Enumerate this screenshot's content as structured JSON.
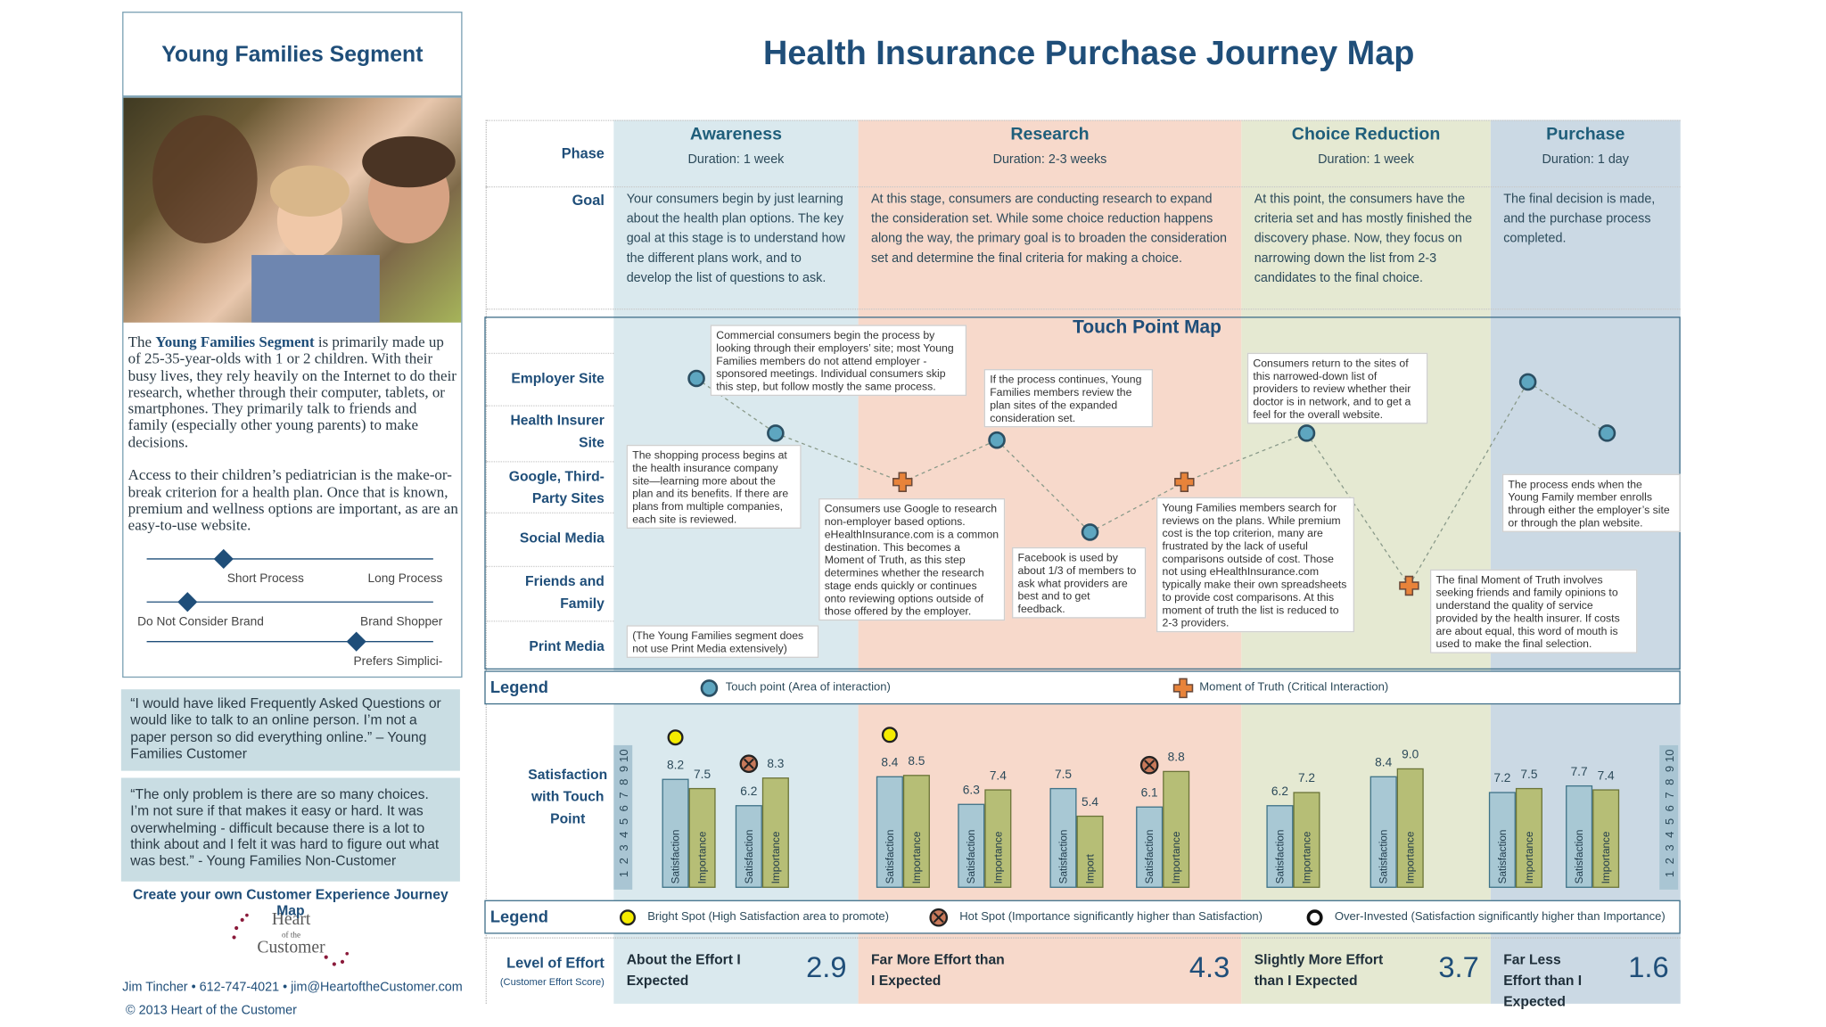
{
  "segment": {
    "title": "Young Families Segment",
    "intro_prefix": "The ",
    "intro_bold": "Young Families Segment",
    "intro_rest": " is primarily made up of 25-35-year-olds with 1 or 2 children. With their busy lives, they rely heavily on the Internet to do their research, whether through their computer, tablets, or smartphones.  They primarily talk to friends and family (especially other young parents) to make decisions.",
    "access_text": "Access to their children’s pediatrician is the make-or-break criterion for a health plan.  Once that is known, premium and wellness options are important, as are an easy-to-use website.",
    "sliders": [
      {
        "left": "Short Process",
        "right": "Long Process"
      },
      {
        "left": "Do Not Consider Brand",
        "right": "Brand Shopper"
      },
      {
        "right": "Prefers Simplici-"
      }
    ],
    "quotes": [
      "“I would have liked Frequently Asked Questions or would like to talk to an online person.  I’m not a paper person so did everything online.” – Young Families Customer",
      "“The only problem is there are so many choices. I’m not sure if that makes it easy or hard. It was overwhelming - difficult because there is a lot to think about and I felt it was hard to figure out what was best.” - Young Families Non-Customer"
    ],
    "cta": "Create your own Customer Experience Journey Map",
    "logo": {
      "line1": "Heart",
      "line2": "of the",
      "line3": "Customer"
    },
    "contact": "Jim Tincher • 612-747-4021 • jim@HeartoftheCustomer.com",
    "copyright": "© 2013 Heart of the Customer"
  },
  "journey": {
    "title": "Health Insurance Purchase Journey Map",
    "row_labels": {
      "phase": "Phase",
      "goal": "Goal"
    },
    "phases": [
      {
        "name": "Awareness",
        "duration": "Duration: 1 week",
        "color": "#dae9ee",
        "goal": "Your consumers begin by just learning about the health plan options. The key goal at this stage is to understand how the different plans work, and to develop the list of questions to ask.",
        "groups": [
          {
            "marker": "bright",
            "bars": [
              {
                "label": "Satisfaction",
                "value": 8.2
              },
              {
                "label": "Importance",
                "value": 7.5
              }
            ]
          },
          {
            "marker": "hot",
            "bars": [
              {
                "label": "Satisfaction",
                "value": 6.2
              },
              {
                "label": "Importance",
                "value": 8.3
              }
            ]
          }
        ],
        "effort": {
          "text": "About the Effort I Expected",
          "score": 2.9
        }
      },
      {
        "name": "Research",
        "duration": "Duration: 2-3 weeks",
        "color": "#f7d9cb",
        "goal": "At this stage, consumers are conducting research to expand the consideration set.  While some choice reduction happens along the way, the primary goal is to broaden the consideration set and determine the final criteria for making a choice.",
        "groups": [
          {
            "marker": "bright",
            "bars": [
              {
                "label": "Satisfaction",
                "value": 8.4
              },
              {
                "label": "Importance",
                "value": 8.5
              }
            ]
          },
          {
            "bars": [
              {
                "label": "Satisfaction",
                "value": 6.3
              },
              {
                "label": "Importance",
                "value": 7.4
              }
            ]
          },
          {
            "bars": [
              {
                "label": "Satisfaction",
                "value": 7.5
              },
              {
                "label": "Import",
                "value": 5.4
              }
            ]
          },
          {
            "marker": "hot",
            "bars": [
              {
                "label": "Satisfaction",
                "value": 6.1
              },
              {
                "label": "Importance",
                "value": 8.8
              }
            ]
          }
        ],
        "effort": {
          "text": "Far More Effort than I Expected",
          "score": 4.3
        }
      },
      {
        "name": "Choice Reduction",
        "duration": "Duration: 1 week",
        "color": "#e5e9d2",
        "goal": "At this point, the consumers have the criteria set and has mostly finished the discovery phase.  Now, they focus on narrowing down the list from 2-3 candidates to the final choice.",
        "groups": [
          {
            "bars": [
              {
                "label": "Satisfaction",
                "value": 6.2
              },
              {
                "label": "Importance",
                "value": 7.2
              }
            ]
          },
          {
            "bars": [
              {
                "label": "Satisfaction",
                "value": 8.4
              },
              {
                "label": "Importance",
                "value": 9,
                "value_label": "9.0"
              }
            ]
          }
        ],
        "effort": {
          "text": "Slightly More Effort than I Expected",
          "score": 3.7
        }
      },
      {
        "name": "Purchase",
        "duration": "Duration: 1 day",
        "color": "#cbd9e4",
        "goal": "The final decision is made, and the purchase process completed.",
        "groups": [
          {
            "bars": [
              {
                "label": "Satisfaction",
                "value": 7.2
              },
              {
                "label": "Importance",
                "value": 7.5
              }
            ]
          },
          {
            "bars": [
              {
                "label": "Satisfaction",
                "value": 7.7
              },
              {
                "label": "Importance",
                "value": 7.4
              }
            ]
          }
        ],
        "effort": {
          "text": "Far Less Effort than I Expected",
          "score": 1.6
        }
      }
    ],
    "touch_point_map": {
      "title": "Touch Point Map",
      "channels": [
        "Employer Site",
        "Health Insurer Site",
        "Google, Third-Party Sites",
        "Social Media",
        "Friends and Family",
        "Print Media"
      ],
      "annotations": [
        "Commercial consumers begin the process by looking through their employers’ site; most Young Families members do not attend employer -sponsored meetings.  Individual consumers skip this step, but follow mostly the same process.",
        "The shopping process begins at the health insurance company site—learning more about the plan and its benefits.  If there are plans from multiple companies, each site is reviewed.",
        "Consumers use Google to research non-employer based options. eHealthInsurance.com is a common destination. This becomes a Moment of Truth, as this step determines whether the research stage ends quickly or continues onto reviewing options outside of those offered by the employer.",
        "If the process continues, Young Families members review the plan sites of the expanded consideration set.",
        "Facebook is used by about 1/3 of members to ask what providers are best and to get feedback.",
        "Young Families members search for reviews on the plans. While premium cost is the top criterion, many are frustrated by the lack of useful comparisons outside of cost.  Those not using eHealthInsurance.com typically make their own spreadsheets to provide cost comparisons. At this moment of truth the list is reduced to 2-3 providers.",
        "Consumers return to the sites of this narrowed-down list of providers to review whether their doctor is in network, and to get a feel for the overall website.",
        "The process ends when the Young Family member enrolls through either the employer’s site or through the plan website.",
        "The final Moment of Truth involves seeking friends and family opinions to understand the quality of service provided by the health insurer.  If costs are about equal, this word of mouth is used to make the final selection.",
        "(The Young Families segment does not use Print Media extensively)"
      ]
    },
    "touch_legend": {
      "title": "Legend",
      "touch_point": "Touch point (Area of interaction)",
      "moment": "Moment of Truth (Critical Interaction)"
    },
    "satisfaction": {
      "label": "Satisfaction with Touch Point",
      "ylim": [
        0,
        10
      ],
      "scale": [
        1,
        2,
        3,
        4,
        5,
        6,
        7,
        8,
        9,
        10
      ]
    },
    "spot_legend": {
      "title": "Legend",
      "bright": "Bright Spot (High Satisfaction area to promote)",
      "hot": "Hot Spot (Importance significantly higher than Satisfaction)",
      "over": "Over-Invested (Satisfaction significantly higher than Importance)"
    },
    "effort": {
      "label": "Level of Effort",
      "sublabel": "(Customer Effort Score)"
    }
  }
}
